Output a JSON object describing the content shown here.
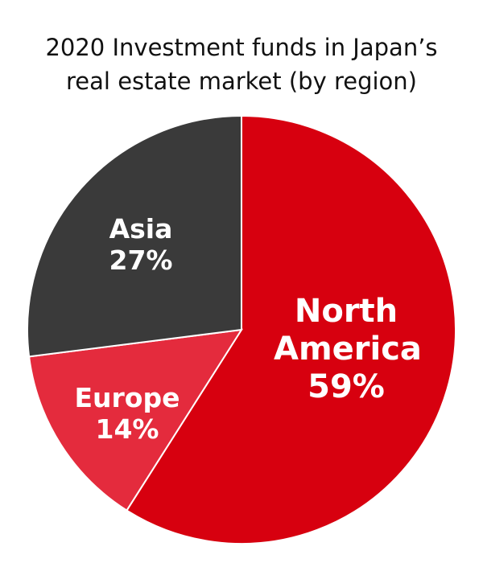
{
  "chart_data": {
    "type": "pie",
    "title": "2020 Investment funds in Japan’s real estate market (by region)",
    "categories": [
      "North America",
      "Europe",
      "Asia"
    ],
    "values": [
      59,
      14,
      27
    ],
    "value_labels": [
      "59%",
      "14%",
      "27%"
    ],
    "colors": [
      "#d7000f",
      "#e42b3d",
      "#3a3a3a"
    ]
  }
}
